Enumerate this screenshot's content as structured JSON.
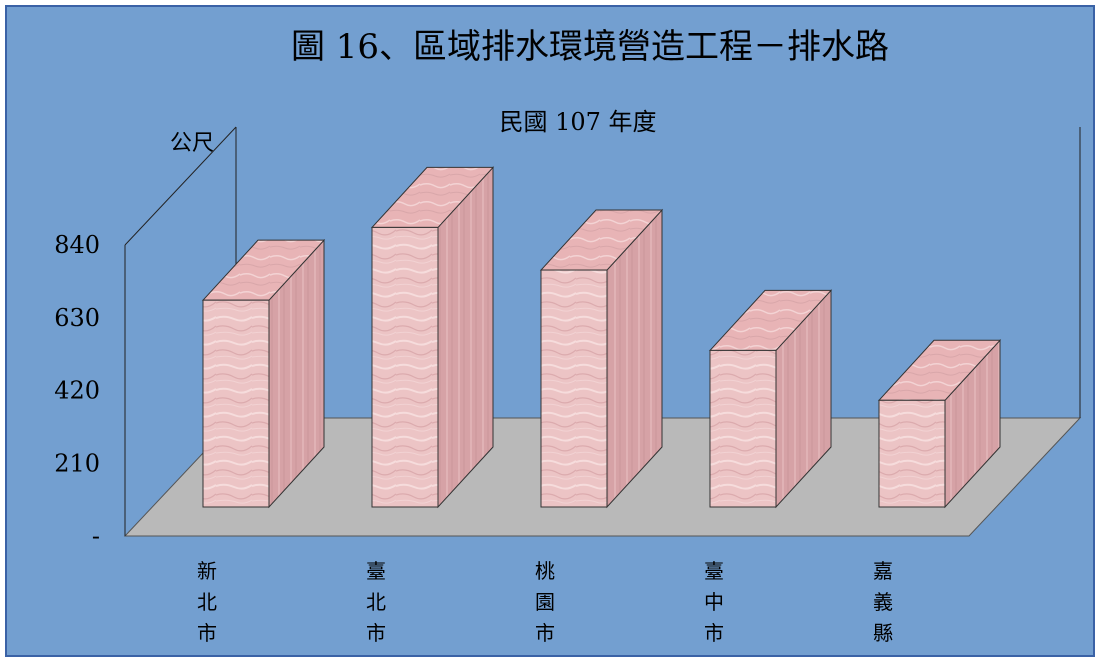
{
  "chart_data": {
    "type": "bar",
    "title": "圖 16、區域排水環境營造工程－排水路",
    "subtitle": "民國 107 年度",
    "ylabel": "公尺",
    "categories": [
      "新北市",
      "臺北市",
      "桃園市",
      "臺中市",
      "嘉義縣"
    ],
    "values": [
      597,
      807,
      684,
      452,
      308
    ],
    "ylim": [
      0,
      840
    ],
    "yticks": [
      {
        "value": 0,
        "label": "-"
      },
      {
        "value": 210,
        "label": "210"
      },
      {
        "value": 420,
        "label": "420"
      },
      {
        "value": 630,
        "label": "630"
      },
      {
        "value": 840,
        "label": "840"
      }
    ],
    "colors": {
      "background": "#739fd0",
      "floor": "#b9b9b9",
      "bar_front": "#ecc4c5",
      "bar_top": "#e8b4b6",
      "bar_side": "#d6a2a6",
      "line": "#222222",
      "frame": "#3a62a6"
    }
  }
}
